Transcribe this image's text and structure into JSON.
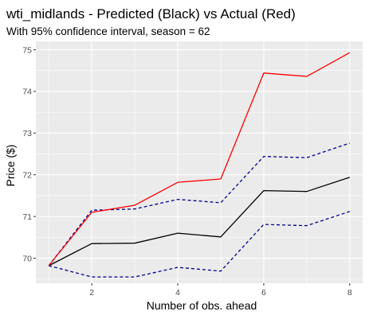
{
  "chart_data": {
    "type": "line",
    "title": "wti_midlands - Predicted (Black) vs Actual (Red)",
    "subtitle": "With 95% confidence interval, season = 62",
    "xlabel": "Number of obs. ahead",
    "ylabel": "Price ($)",
    "xlim": [
      0.7,
      8.3
    ],
    "ylim": [
      69.4,
      75.2
    ],
    "xticks": [
      2,
      4,
      6,
      8
    ],
    "yticks": [
      70,
      71,
      72,
      73,
      74,
      75
    ],
    "grid": true,
    "legend": "none",
    "x": [
      1,
      2,
      3,
      4,
      5,
      6,
      7,
      8
    ],
    "series": [
      {
        "key": "actual",
        "color": "#ff0000",
        "dash": "solid",
        "values": [
          69.82,
          71.1,
          71.27,
          71.82,
          71.9,
          74.44,
          74.36,
          74.93
        ]
      },
      {
        "key": "predicted",
        "color": "#000000",
        "dash": "solid",
        "values": [
          69.82,
          70.35,
          70.36,
          70.6,
          70.51,
          71.62,
          71.6,
          71.94
        ]
      },
      {
        "key": "upper",
        "color": "#00008b",
        "dash": "dashed",
        "values": [
          69.82,
          71.15,
          71.18,
          71.41,
          71.33,
          72.44,
          72.41,
          72.76
        ]
      },
      {
        "key": "lower",
        "color": "#00008b",
        "dash": "dashed",
        "values": [
          69.82,
          69.55,
          69.55,
          69.78,
          69.69,
          70.81,
          70.78,
          71.12
        ]
      }
    ]
  }
}
